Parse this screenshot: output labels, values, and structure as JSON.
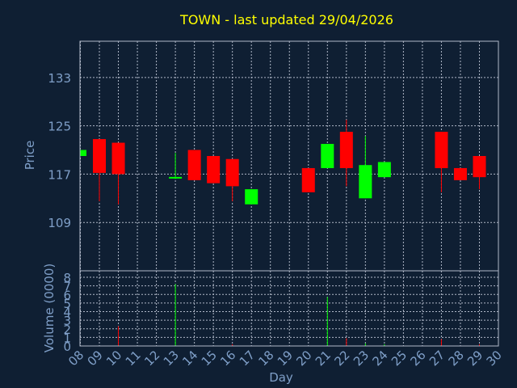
{
  "chart_data": {
    "type": "candlestick",
    "title": "TOWN - last updated 29/04/2026",
    "xlabel": "Day",
    "price_panel": {
      "ylabel": "Price",
      "ylim": [
        101,
        139
      ],
      "yticks": [
        109,
        117,
        125,
        133
      ],
      "grid": true
    },
    "volume_panel": {
      "ylabel": "Volume (0000)",
      "ylim": [
        0,
        8
      ],
      "yticks": [
        0,
        1,
        2,
        3,
        4,
        5,
        6,
        7,
        8
      ],
      "grid": true
    },
    "x_ticks": [
      "08",
      "09",
      "10",
      "11",
      "12",
      "13",
      "14",
      "15",
      "16",
      "17",
      "18",
      "19",
      "20",
      "21",
      "22",
      "23",
      "24",
      "25",
      "26",
      "27",
      "28",
      "29",
      "30"
    ],
    "colors": {
      "up": "#00ff00",
      "down": "#ff0000",
      "grid": "#b0b8c8",
      "axis": "#7f9fc8",
      "title": "#ffff00",
      "background": "#0f1f33"
    },
    "candles": [
      {
        "day": 8,
        "open": 120.0,
        "close": 121.0,
        "high": 121.0,
        "low": 120.0,
        "volume": 0
      },
      {
        "day": 9,
        "open": 122.8,
        "close": 117.2,
        "high": 122.8,
        "low": 112.5,
        "volume": 0
      },
      {
        "day": 10,
        "open": 122.2,
        "close": 117.0,
        "high": 122.2,
        "low": 112.0,
        "volume": 2.3
      },
      {
        "day": 13,
        "open": 116.2,
        "close": 116.4,
        "high": 120.5,
        "low": 116.2,
        "volume": 7.2
      },
      {
        "day": 14,
        "open": 121.0,
        "close": 116.0,
        "high": 121.0,
        "low": 116.0,
        "volume": 0
      },
      {
        "day": 15,
        "open": 120.0,
        "close": 115.5,
        "high": 120.0,
        "low": 115.5,
        "volume": 0
      },
      {
        "day": 16,
        "open": 119.5,
        "close": 115.0,
        "high": 119.5,
        "low": 112.5,
        "volume": 0.2
      },
      {
        "day": 17,
        "open": 112.0,
        "close": 114.5,
        "high": 114.5,
        "low": 112.0,
        "volume": 0
      },
      {
        "day": 20,
        "open": 118.0,
        "close": 114.0,
        "high": 118.0,
        "low": 114.0,
        "volume": 0
      },
      {
        "day": 21,
        "open": 118.0,
        "close": 122.0,
        "high": 122.0,
        "low": 118.0,
        "volume": 5.7
      },
      {
        "day": 22,
        "open": 124.0,
        "close": 118.0,
        "high": 126.0,
        "low": 115.0,
        "volume": 0.9
      },
      {
        "day": 23,
        "open": 113.0,
        "close": 118.5,
        "high": 123.3,
        "low": 113.0,
        "volume": 0.3
      },
      {
        "day": 24,
        "open": 116.5,
        "close": 119.0,
        "high": 119.0,
        "low": 116.5,
        "volume": 0.2
      },
      {
        "day": 27,
        "open": 124.0,
        "close": 118.0,
        "high": 124.0,
        "low": 114.0,
        "volume": 0.8
      },
      {
        "day": 28,
        "open": 118.0,
        "close": 116.0,
        "high": 118.0,
        "low": 116.0,
        "volume": 0
      },
      {
        "day": 29,
        "open": 120.0,
        "close": 116.5,
        "high": 120.0,
        "low": 114.5,
        "volume": 0.2
      }
    ]
  }
}
